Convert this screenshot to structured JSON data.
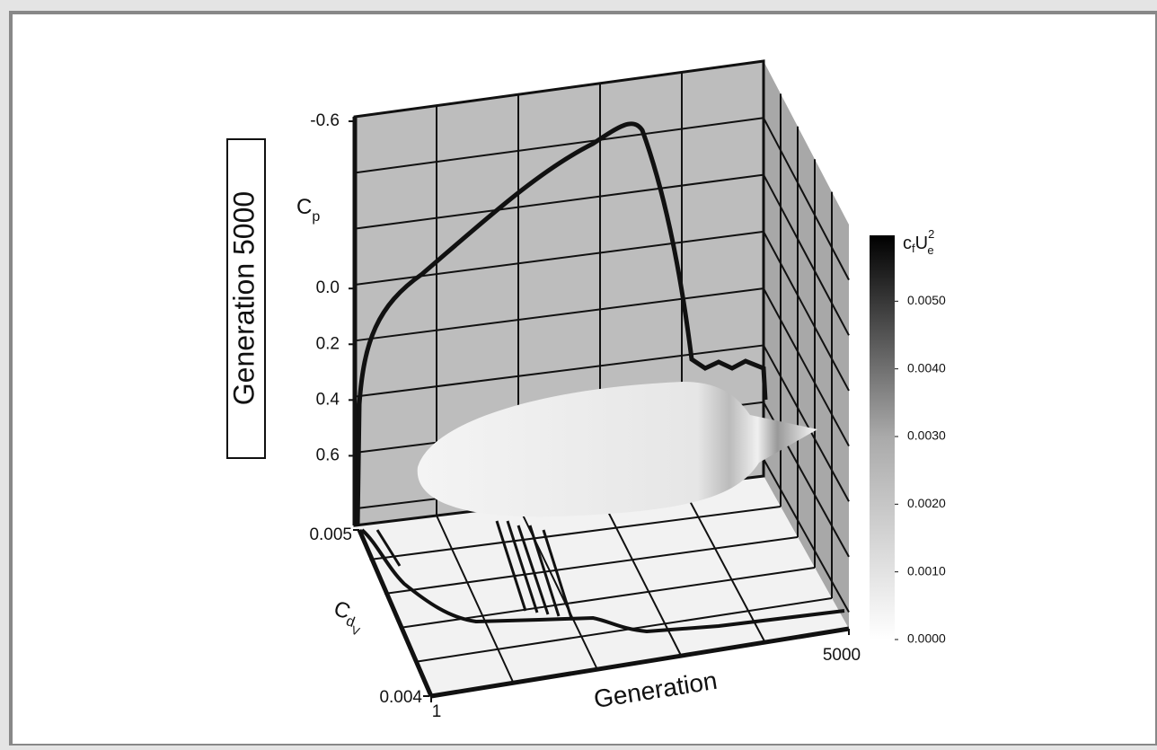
{
  "chart_data": {
    "type": "3d",
    "title": "Generation 5000",
    "y_label": {
      "text": "C",
      "sub": "p"
    },
    "z_label": {
      "text": "C",
      "sub": "d",
      "subsub": "V"
    },
    "x_label": "Generation",
    "colorbar_label": {
      "a": "c",
      "asub": "f",
      "b": "U",
      "bsub": "e",
      "bsup": "2"
    },
    "ylim": [
      -0.6,
      0.85
    ],
    "yticks": [
      -0.6,
      {
        "value": 0,
        "label": "0.0"
      },
      0.2,
      0.4,
      0.6
    ],
    "zticks": [
      0.005,
      0.004
    ],
    "xticks": [
      1,
      5000
    ],
    "colorbar_lim": [
      0,
      0.006
    ],
    "colorbar_ticks": [
      {
        "value": 0.005,
        "label": "0.0050"
      },
      {
        "value": 0.004,
        "label": "0.0040"
      },
      {
        "value": 0.003,
        "label": "0.0030"
      },
      {
        "value": 0.002,
        "label": "0.0020"
      },
      {
        "value": 0.001,
        "label": "0.0010"
      },
      {
        "value": 0,
        "label": "0.0000"
      }
    ]
  }
}
